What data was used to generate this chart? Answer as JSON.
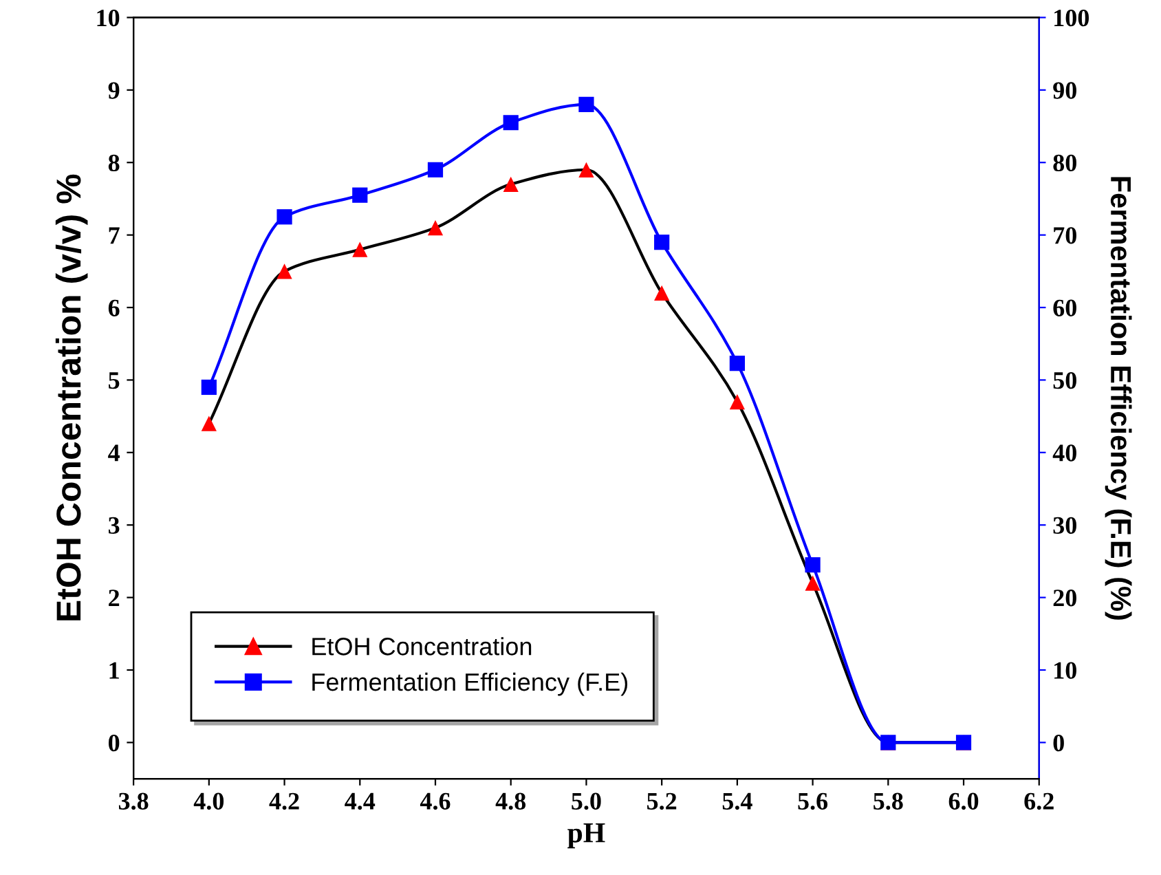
{
  "chart_data": {
    "type": "line",
    "xlabel": "pH",
    "ylabel": "EtOH Concentration (v/v) %",
    "y2label": "Fermentation Efficiency (F.E) (%)",
    "x": [
      4.0,
      4.2,
      4.4,
      4.6,
      4.8,
      5.0,
      5.2,
      5.4,
      5.6,
      5.8,
      6.0
    ],
    "series": [
      {
        "name": "EtOH Concentration",
        "color": "#000000",
        "colors": [
          "#ff0000",
          "#ff0000",
          "#ff0000",
          "#ff0000",
          "#ff0000",
          "#ff0000",
          "#ff0000",
          "#ff0000",
          "#ff0000",
          "#ff0000",
          "#ff0000"
        ],
        "marker": "triangle",
        "values": [
          4.4,
          6.5,
          6.8,
          7.1,
          7.7,
          7.9,
          6.2,
          4.7,
          2.2,
          0,
          0
        ]
      },
      {
        "name": "Fermentation Efficiency (F.E)",
        "color": "#0000ff",
        "marker": "square",
        "axis": "y2",
        "values": [
          49,
          72.5,
          75.5,
          79,
          85.5,
          88,
          69,
          52.3,
          24.5,
          0,
          0
        ]
      }
    ],
    "xlim": [
      3.8,
      6.2
    ],
    "xticks": [
      3.8,
      {
        "value": 4.0,
        "label": "4.0"
      },
      4.2,
      4.4,
      4.6,
      4.8,
      {
        "value": 5.0,
        "label": "5.0"
      },
      5.2,
      5.4,
      5.6,
      5.8,
      {
        "value": 6.0,
        "label": "6.0"
      },
      6.2
    ],
    "ylim": [
      -0.5,
      10
    ],
    "yticks": [
      0,
      1,
      2,
      3,
      4,
      5,
      6,
      7,
      8,
      9,
      10
    ],
    "y2lim": [
      -5,
      100
    ],
    "y2ticks": [
      0,
      10,
      20,
      30,
      40,
      50,
      60,
      70,
      80,
      90,
      100
    ],
    "legend": "bottom left",
    "grid": false
  }
}
